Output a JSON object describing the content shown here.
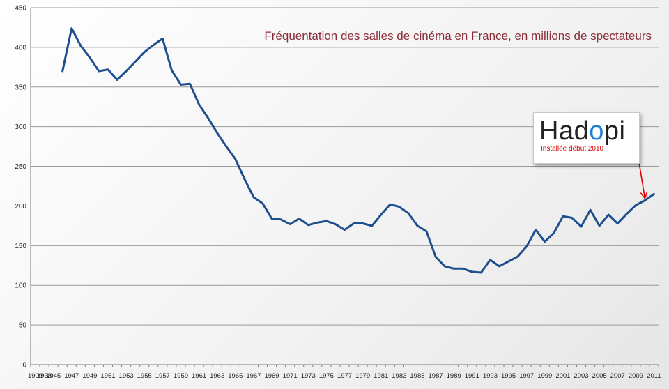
{
  "chart_data": {
    "type": "line",
    "title": "Fréquentation des salles de cinéma en France, en millions de spectateurs",
    "xlabel": "",
    "ylabel": "",
    "ylim": [
      0,
      450
    ],
    "yticks": [
      0,
      50,
      100,
      150,
      200,
      250,
      300,
      350,
      400,
      450
    ],
    "grid": "horizontal",
    "x_tick_labels": [
      "1909",
      "1938",
      "1945",
      "1947",
      "1949",
      "1951",
      "1953",
      "1955",
      "1957",
      "1959",
      "1961",
      "1963",
      "1965",
      "1967",
      "1969",
      "1971",
      "1973",
      "1975",
      "1977",
      "1979",
      "1981",
      "1983",
      "1985",
      "1987",
      "1989",
      "1991",
      "1993",
      "1995",
      "1997",
      "1999",
      "2001",
      "2003",
      "2005",
      "2007",
      "2009",
      "2011"
    ],
    "categories": [
      "1909",
      "1938",
      "1945",
      "1946",
      "1947",
      "1948",
      "1949",
      "1950",
      "1951",
      "1952",
      "1953",
      "1954",
      "1955",
      "1956",
      "1957",
      "1958",
      "1959",
      "1960",
      "1961",
      "1962",
      "1963",
      "1964",
      "1965",
      "1966",
      "1967",
      "1968",
      "1969",
      "1970",
      "1971",
      "1972",
      "1973",
      "1974",
      "1975",
      "1976",
      "1977",
      "1978",
      "1979",
      "1980",
      "1981",
      "1982",
      "1983",
      "1984",
      "1985",
      "1986",
      "1987",
      "1988",
      "1989",
      "1990",
      "1991",
      "1992",
      "1993",
      "1994",
      "1995",
      "1996",
      "1997",
      "1998",
      "1999",
      "2000",
      "2001",
      "2002",
      "2003",
      "2004",
      "2005",
      "2006",
      "2007",
      "2008",
      "2009",
      "2010",
      "2011"
    ],
    "series": [
      {
        "name": "",
        "color": "#1f4e8c",
        "values": [
          null,
          null,
          null,
          370,
          424,
          402,
          387,
          370,
          372,
          359,
          370,
          382,
          394,
          403,
          411,
          371,
          353,
          354,
          328,
          311,
          292,
          275,
          259,
          234,
          211,
          203,
          184,
          183,
          177,
          184,
          176,
          179,
          181,
          177,
          170,
          178,
          178,
          175,
          189,
          202,
          199,
          191,
          175,
          168,
          136,
          124,
          121,
          121,
          117,
          116,
          132,
          124,
          130,
          136,
          149,
          170,
          155,
          166,
          187,
          185,
          174,
          195,
          175,
          189,
          178,
          190,
          201,
          207,
          215
        ]
      }
    ],
    "annotation": {
      "logo_text": "Hadopi",
      "caption": "Installée début 2010",
      "points_to": "2010",
      "arrow_color": "#e00000"
    }
  }
}
